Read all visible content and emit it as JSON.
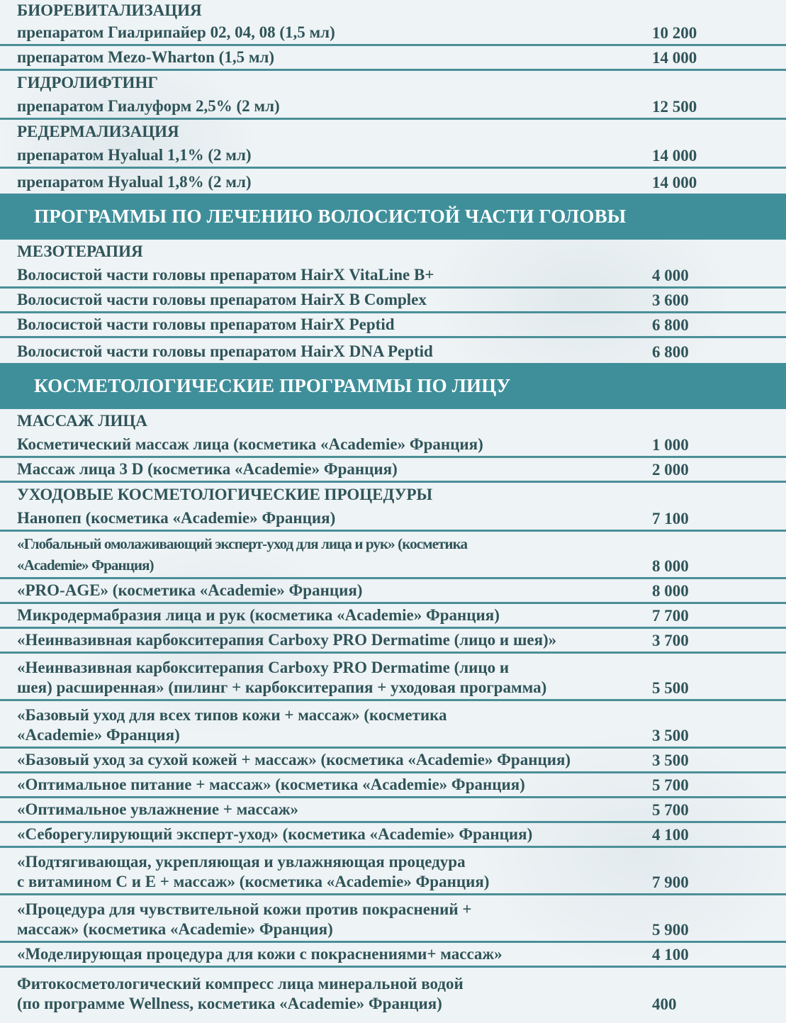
{
  "colors": {
    "bar": "#3f8f9a",
    "text": "#2f5459",
    "divider": "#4b8f98",
    "background": "#eef3f5"
  },
  "rows": [
    {
      "kind": "heading",
      "text": "БИОРЕВИТАЛИЗАЦИЯ"
    },
    {
      "kind": "item",
      "text": "препаратом Гиалрипайер 02, 04, 08 (1,5 мл)",
      "price": "10 200"
    },
    {
      "kind": "item",
      "text": "препаратом Mezo-Wharton (1,5 мл)",
      "price": "14 000"
    },
    {
      "kind": "heading",
      "text": "ГИДРОЛИФТИНГ"
    },
    {
      "kind": "item",
      "text": "препаратом Гиалуформ 2,5% (2 мл)",
      "price": "12 500"
    },
    {
      "kind": "heading",
      "text": "РЕДЕРМАЛИЗАЦИЯ"
    },
    {
      "kind": "item",
      "text": "препаратом Hyalual 1,1% (2 мл)",
      "price": "14 000"
    },
    {
      "kind": "item",
      "text": "препаратом Hyalual 1,8% (2 мл)",
      "price": "14 000"
    },
    {
      "kind": "section",
      "text": "ПРОГРАММЫ  ПО ЛЕЧЕНИЮ ВОЛОСИСТОЙ ЧАСТИ ГОЛОВЫ"
    },
    {
      "kind": "heading",
      "text": "МЕЗОТЕРАПИЯ"
    },
    {
      "kind": "item",
      "text": "Волосистой части головы препаратом HairX VitaLine B+",
      "price": "4 000"
    },
    {
      "kind": "item",
      "text": "Волосистой части головы препаратом  HairX  B Complex",
      "price": "3 600"
    },
    {
      "kind": "item",
      "text": "Волосистой части головы препаратом  HairX  Peptid",
      "price": "6 800"
    },
    {
      "kind": "item",
      "text": "Волосистой части головы препаратом  HairX  DNA Peptid",
      "price": "6 800"
    },
    {
      "kind": "section",
      "text": "КОСМЕТОЛОГИЧЕСКИЕ ПРОГРАММЫ ПО ЛИЦУ"
    },
    {
      "kind": "heading",
      "text": "МАССАЖ  ЛИЦА"
    },
    {
      "kind": "item",
      "text": "Косметический массаж лица (косметика «Academie» Франция)",
      "price": "1 000"
    },
    {
      "kind": "item",
      "text": "Массаж лица 3 D (косметика «Academie» Франция)",
      "price": "2 000"
    },
    {
      "kind": "heading",
      "text": "УХОДОВЫЕ КОСМЕТОЛОГИЧЕСКИЕ ПРОЦЕДУРЫ"
    },
    {
      "kind": "item",
      "text": "Нанопеп (косметика  «Academie»  Франция)",
      "price": "7 100"
    },
    {
      "kind": "item2c",
      "text": "«Глобальный омолаживающий эксперт-уход для лица и рук» (косметика\n«Academie» Франция)",
      "price": "8 000"
    },
    {
      "kind": "item",
      "text": "«PRO-AGE» (косметика «Academie» Франция)",
      "price": "8 000"
    },
    {
      "kind": "item",
      "text": "Микродермабразия лица и рук (косметика «Academie» Франция)",
      "price": "7 700"
    },
    {
      "kind": "item",
      "text": "«Неинвазивная карбокситерапия Carboxy PRO Dermatime (лицо и шея)»",
      "price": "3 700"
    },
    {
      "kind": "item2",
      "text": "«Неинвазивная карбокситерапия Carboxy PRO Dermatime (лицо и\nшея) расширенная» (пилинг + карбокситерапия + уходовая программа)",
      "price": "5 500"
    },
    {
      "kind": "item2",
      "text": "«Базовый уход для всех типов кожи + массаж» (косметика\n«Academie» Франция)",
      "price": "3 500"
    },
    {
      "kind": "item",
      "text": "«Базовый уход за сухой кожей + массаж» (косметика «Academie» Франция)",
      "price": "3 500"
    },
    {
      "kind": "item",
      "text": "«Оптимальное питание + массаж» (косметика «Academie» Франция)",
      "price": "5 700"
    },
    {
      "kind": "item",
      "text": "«Оптимальное увлажнение + массаж»",
      "price": "5 700"
    },
    {
      "kind": "item",
      "text": "«Себорегулирующий эксперт-уход» (косметика «Academie» Франция)",
      "price": "4 100"
    },
    {
      "kind": "item2",
      "text": "«Подтягивающая, укрепляющая и увлажняющая процедура\nс витамином С и Е + массаж» (косметика «Academie» Франция)",
      "price": "7 900"
    },
    {
      "kind": "item2",
      "text": "«Процедура для чувствительной кожи против покраснений +\nмассаж» (косметика «Academie» Франция)",
      "price": "5 900"
    },
    {
      "kind": "item",
      "text": "«Моделирующая процедура для кожи с покраснениями+ массаж»",
      "price": "4 100"
    },
    {
      "kind": "item2",
      "text": "Фитокосметологический компресс лица минеральной водой\n(по программе Wellness, косметика «Academie» Франция)",
      "price": "400"
    }
  ]
}
